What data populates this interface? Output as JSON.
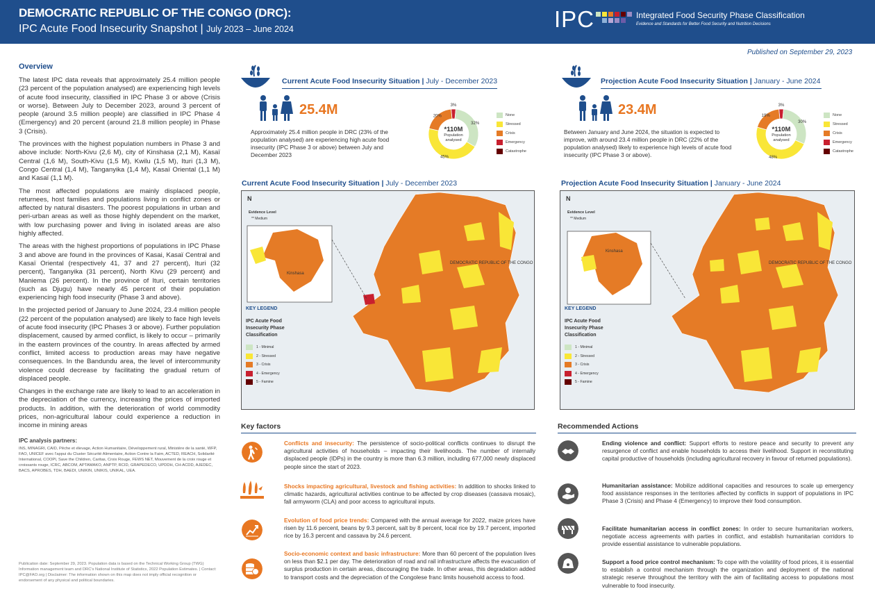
{
  "header": {
    "title": "DEMOCRATIC REPUBLIC OF THE CONGO (DRC):",
    "subtitle": "IPC Acute Food Insecurity Snapshot",
    "separator": "|",
    "period": "July 2023 – June 2024",
    "logo": "IPC",
    "org_name": "Integrated Food Security Phase Classification",
    "org_tagline": "Evidence and Standards for Better Food Security and Nutrition Decisions"
  },
  "published": "Published on September 29, 2023",
  "overview": {
    "heading": "Overview",
    "paragraphs": [
      "The latest IPC data reveals that approximately 25.4 million people (23 percent of the population analysed) are experiencing high levels of acute food insecurity, classified in IPC Phase 3 or above (Crisis or worse). Between July to December 2023, around 3 percent of people (around 3.5 million people) are classified in IPC Phase 4 (Emergency) and 20 percent (around 21.8 million people) in Phase 3 (Crisis).",
      "The provinces with the highest population numbers in Phase 3 and above include: North-Kivu (2,6 M), city of Kinshasa (2,1 M), Kasaï Central (1,6 M), South-Kivu (1,5 M), Kwilu (1,5 M), Ituri (1,3 M), Congo Central (1,4 M), Tanganyika (1,4 M), Kasaï Oriental (1,1 M) and Kasaï (1,1 M).",
      "The most affected populations are mainly displaced people, returnees, host families and populations living in conflict zones or affected by natural disasters. The poorest populations in urban and peri-urban areas as well as those highly dependent on the market, with low purchasing power and living in isolated areas are also highly affected.",
      "The areas with the highest proportions of populations in IPC Phase 3 and above are found in the provinces of Kasai, Kasaï Central and Kasaï Oriental (respectively 41, 37 and 27 percent), Ituri (32 percent), Tanganyika (31 percent), North Kivu (29 percent) and Maniema (26 percent). In the province of Ituri, certain territories (such as Djugu) have nearly 45 percent of their population experiencing high food insecurity (Phase 3 and above).",
      "In the projected period of January to June 2024, 23.4 million people (22 percent of the population analysed) are likely to face high levels of acute food insecurity (IPC Phases 3 or above). Further population displacement, caused by armed conflict, is likely to occur – primarily in the eastern provinces of the country. In areas affected by armed conflict, limited access to production areas may have negative consequences. In the Bandundu area, the level of intercommunity violence could decrease by facilitating the gradual return of displaced people.",
      "Changes in the exchange rate are likely to lead to an acceleration in the depreciation of the currency, increasing the prices of imported products. In addition, with the deterioration of world commodity prices, non-agricultural labour could experience a reduction in income in mining areas"
    ],
    "partners_heading": "IPC analysis partners:",
    "partners": "INS, MINAGRI, CAID, Pêche et élevage, Action Humanitaire, Développement rural, Ministère de la santé, WFP, FAO, UNICEF avec l'appui du Cluster Sécurité Alimentaire, Action Contre la Faim, ACTED, REACH, Solidarité International, COOPI, Save the Children, Caritas, Croix Rouge, FEWS NET, Mouvement de la croix rouge et croissants rouge, ICRC, ABCOM, APTAMAKO, ANPTP, RCID, GRAPEDECO, UPDDH, CH-ACDD, AJEDEC, BACS, APROBES, TDH, BAEDI, UNIKIN, UNIKIS, UNIKAL, UEA.",
    "note": "Publication date: September 29, 2023. Population data is based on the Technical Working Group (TWG) Information management team and DRC's National Institute of Statistics, 2022 Population Estimates. | Contact: IPC@FAO.org | Disclaimer: The information shown on this map does not imply official recognition or endorsement of any physical and political boundaries."
  },
  "current": {
    "title": "Current Acute Food Insecurity Situation",
    "period": "July - December 2023",
    "number": "25.4M",
    "description": "Approximately 25.4 million people in DRC (23% of the population analysed) are experiencing high acute food insecurity (IPC Phase 3 or above) between July and December 2023",
    "pie_center": "*110M",
    "pie_center_sub": "Population analysed",
    "map_title": "Current Acute Food Insecurity Situation",
    "map_period": "July - December 2023"
  },
  "projection": {
    "title": "Projection Acute Food Insecurity Situation",
    "period": "January - June 2024",
    "number": "23.4M",
    "description": "Between January and June 2024, the situation is expected to improve, with around 23.4 million people in DRC (22% of the population analysed) likely to experience high levels of acute food insecurity (IPC Phase 3 or above).",
    "pie_center": "*110M",
    "pie_center_sub": "Population analysed",
    "map_title": "Projection Acute Food Insecurity Situation",
    "map_period": "January - June 2024"
  },
  "chart_data": [
    {
      "type": "pie",
      "categories": [
        "None",
        "Stressed",
        "Crisis",
        "Emergency",
        "Catastrophe"
      ],
      "values": [
        32,
        45,
        20,
        3,
        0
      ],
      "labels": [
        "32%",
        "45%",
        "20%",
        "3%",
        ""
      ]
    },
    {
      "type": "pie",
      "categories": [
        "None",
        "Stressed",
        "Crisis",
        "Emergency",
        "Catastrophe"
      ],
      "values": [
        30,
        48,
        19,
        3,
        0
      ],
      "labels": [
        "30%",
        "48%",
        "19%",
        "3%",
        ""
      ]
    }
  ],
  "phase_colors": [
    "#cde5c3",
    "#f9e637",
    "#e57b26",
    "#c8202f",
    "#640000"
  ],
  "pie_legend": [
    "None",
    "Stressed",
    "Crisis",
    "Emergency",
    "Catastrophe"
  ],
  "map_legend": {
    "evidence_title": "Evidence Level",
    "evidence_medium": "Medium",
    "evidence_stars": "**",
    "key_legend": "KEY LEGEND",
    "key_title": "IPC Acute Food Insecurity Phase Classification",
    "phases": [
      "1 - Minimal",
      "2 - Stressed",
      "3 - Crisis",
      "4 - Emergency",
      "5 - Famine"
    ],
    "inset_label": "Kinshasa",
    "country_label": "DEMOCRATIC REPUBLIC OF THE CONGO",
    "north": "N"
  },
  "key_factors": {
    "heading": "Key factors",
    "items": [
      {
        "icon": "conflict-icon",
        "title": "Conflicts and insecurity:",
        "text": "The persistence of socio-political conflicts continues to disrupt the agricultural activities of households – impacting their livelihoods. The number of internally displaced people (IDPs) in the country is more than 6.3 million, including 677,000 newly displaced people since the start of 2023."
      },
      {
        "icon": "crop-shock-icon",
        "title": "Shocks impacting agricultural, livestock and fishing activities:",
        "text": "In addition to shocks linked to climatic hazards, agricultural activities continue to be affected by crop diseases (cassava mosaic), fall armyworm (CLA) and poor access to agricultural inputs."
      },
      {
        "icon": "price-trend-icon",
        "title": "Evolution of food price trends:",
        "text": "Compared with the annual average for 2022, maize prices have risen by 11.6 percent, beans by 9.3 percent, salt by 8 percent, local rice by 19.7 percent, imported rice by 16.3 percent and cassava by 24.6 percent."
      },
      {
        "icon": "coins-icon",
        "title": "Socio-economic context and basic infrastructure:",
        "text": "More than 60 percent of the population lives on less than $2.1 per day. The deterioration of road and rail infrastructure affects the evacuation of surplus production in certain areas, discouraging the trade. In other areas, this degradation added to transport costs and the depreciation of the Congolese franc limits household access to food."
      }
    ]
  },
  "recommended": {
    "heading": "Recommended Actions",
    "items": [
      {
        "icon": "peace-icon",
        "title": "Ending violence and conflict:",
        "text": "Support efforts to restore peace and security to prevent any resurgence of conflict and enable households to access their livelihood. Support in reconstituting capital productive of households (including agricultural recovery in favour of returned populations)."
      },
      {
        "icon": "humanitarian-aid-icon",
        "title": "Humanitarian assistance:",
        "text": "Mobilize additional capacities and resources to scale up emergency food assistance responses in the territories affected by conflicts in support of populations in IPC Phase 3 (Crisis) and Phase 4 (Emergency) to improve their food consumption."
      },
      {
        "icon": "access-barrier-icon",
        "title": "Facilitate humanitarian access in conflict zones:",
        "text": "In order to secure humanitarian workers, negotiate access agreements with parties in conflict, and establish humanitarian corridors to provide essential assistance to vulnerable populations."
      },
      {
        "icon": "price-control-icon",
        "title": "Support a food price control mechanism:",
        "text": "To cope with the volatility of food prices, it is essential to establish a control mechanism through the organization and deployment of the national strategic reserve throughout the territory with the aim of facilitating access to populations most vulnerable to food insecurity."
      }
    ]
  }
}
